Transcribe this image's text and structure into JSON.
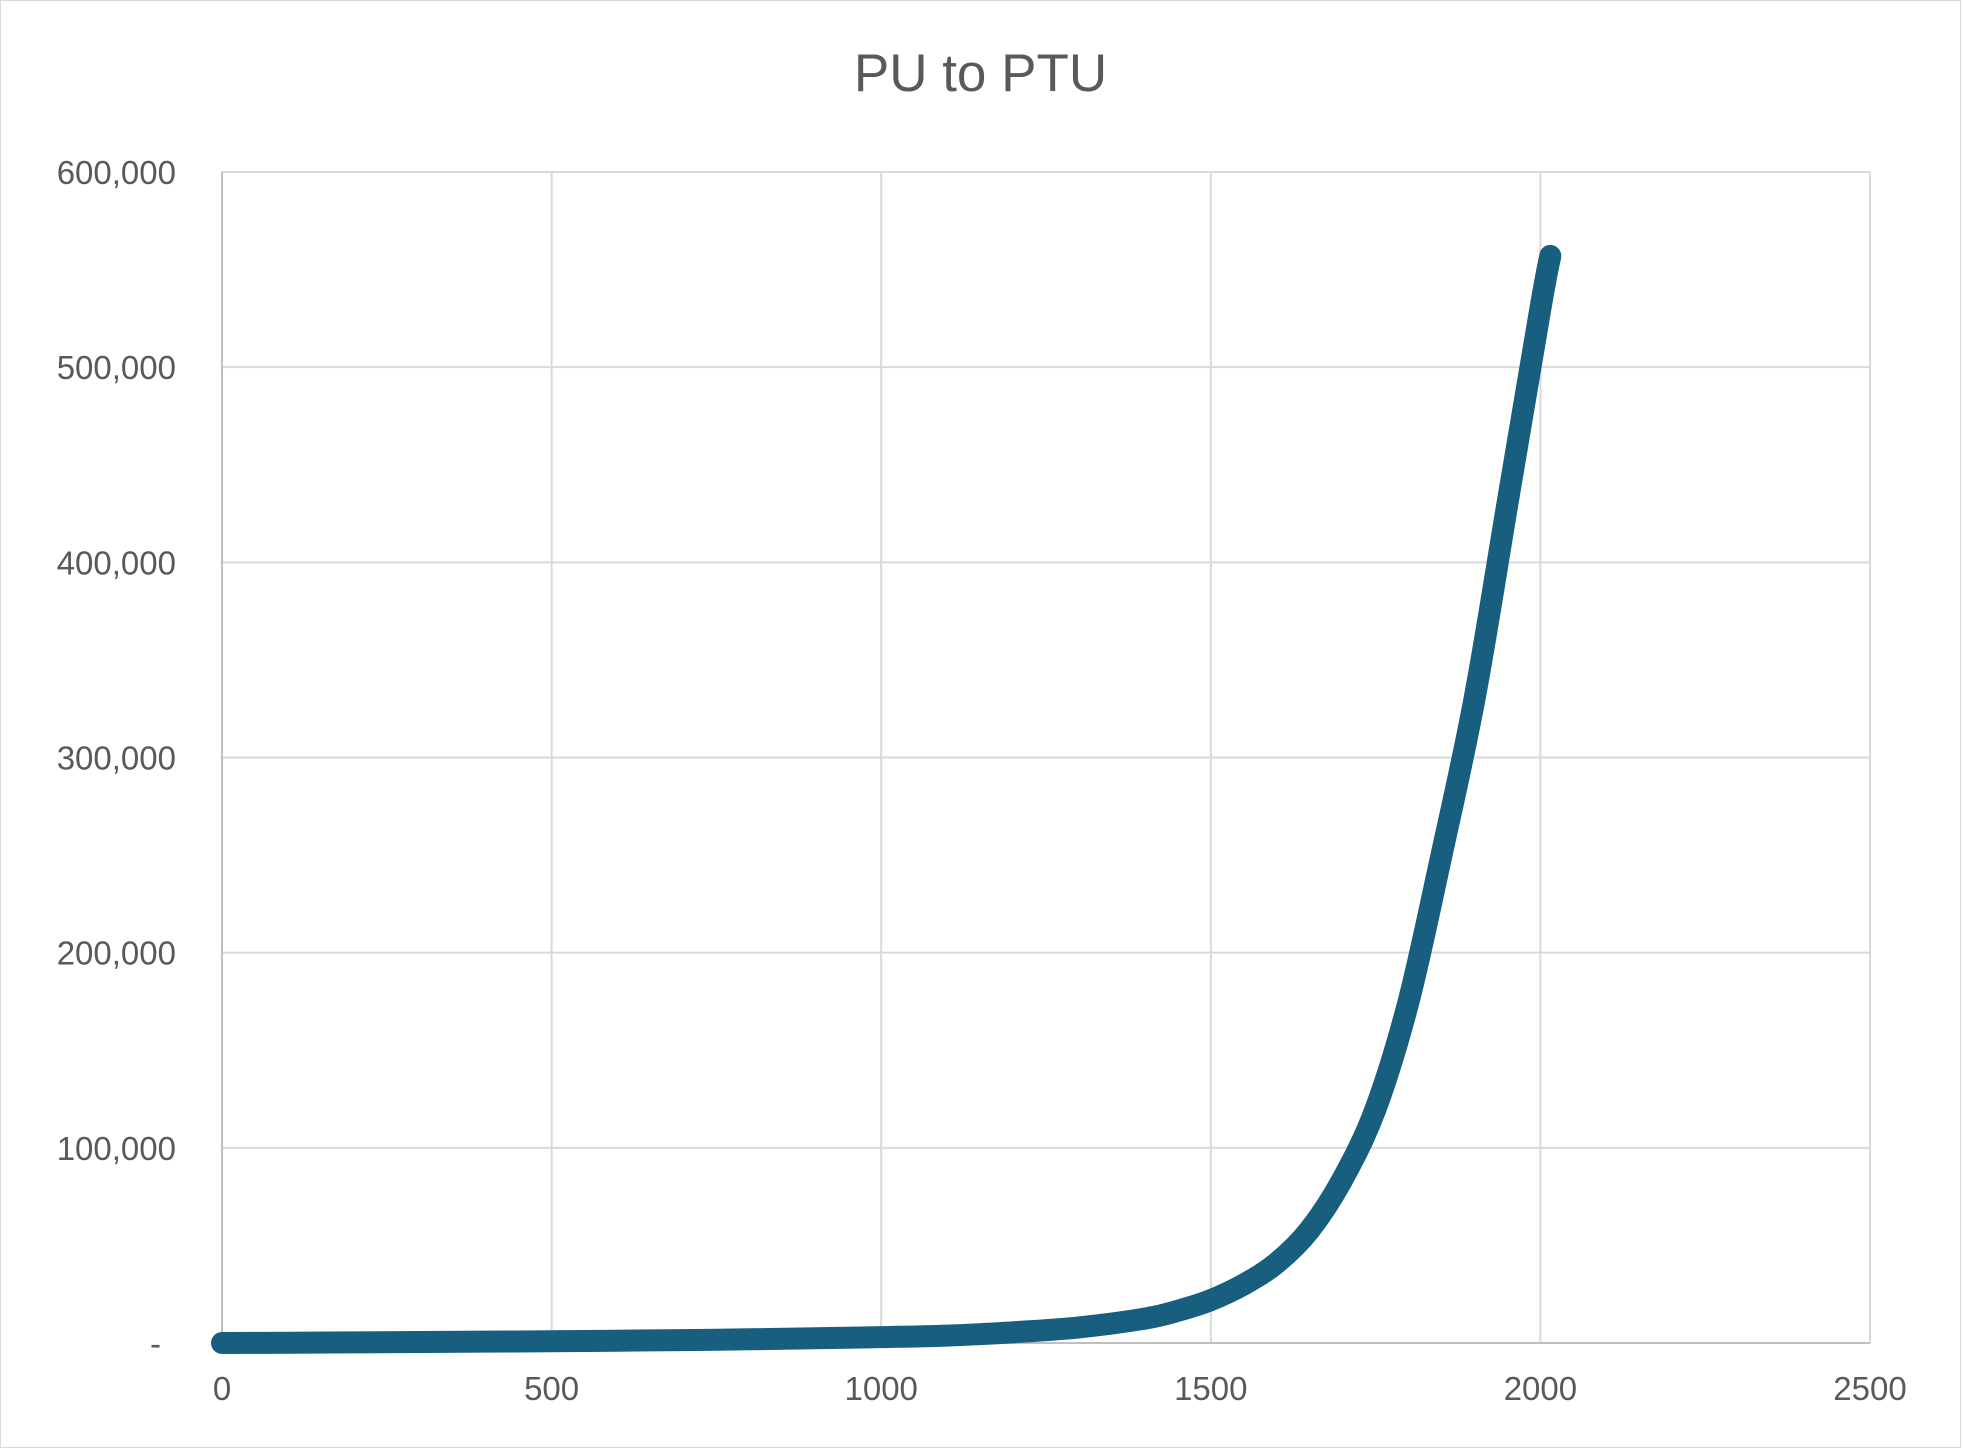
{
  "colors": {
    "series": "#175e7f",
    "grid": "#d9d9d9",
    "text": "#595959"
  },
  "chart_data": {
    "type": "line",
    "title": "PU to PTU",
    "xlabel": "",
    "ylabel": "",
    "xlim": [
      0,
      2500
    ],
    "ylim": [
      0,
      600000
    ],
    "x_ticks": [
      0,
      500,
      1000,
      1500,
      2000,
      2500
    ],
    "x_tick_labels": [
      "0",
      "500",
      "1000",
      "1500",
      "2000",
      "2500"
    ],
    "y_ticks": [
      0,
      100000,
      200000,
      300000,
      400000,
      500000,
      600000
    ],
    "y_tick_labels": [
      "-",
      "100,000",
      "200,000",
      "300,000",
      "400,000",
      "500,000",
      "600,000"
    ],
    "grid": true,
    "legend": "none",
    "series": [
      {
        "x": [
          0,
          100,
          200,
          300,
          400,
          500,
          600,
          700,
          800,
          900,
          1000,
          1100,
          1200,
          1300,
          1400,
          1450,
          1500,
          1550,
          1600,
          1650,
          1700,
          1750,
          1800,
          1850,
          1900,
          1950,
          2000,
          2015
        ],
        "y": [
          0,
          150,
          300,
          500,
          700,
          900,
          1200,
          1500,
          1900,
          2400,
          3000,
          3800,
          5500,
          8000,
          12500,
          16500,
          22000,
          30000,
          41000,
          58000,
          84000,
          120000,
          175000,
          250000,
          330000,
          430000,
          530000,
          557000
        ]
      }
    ]
  }
}
